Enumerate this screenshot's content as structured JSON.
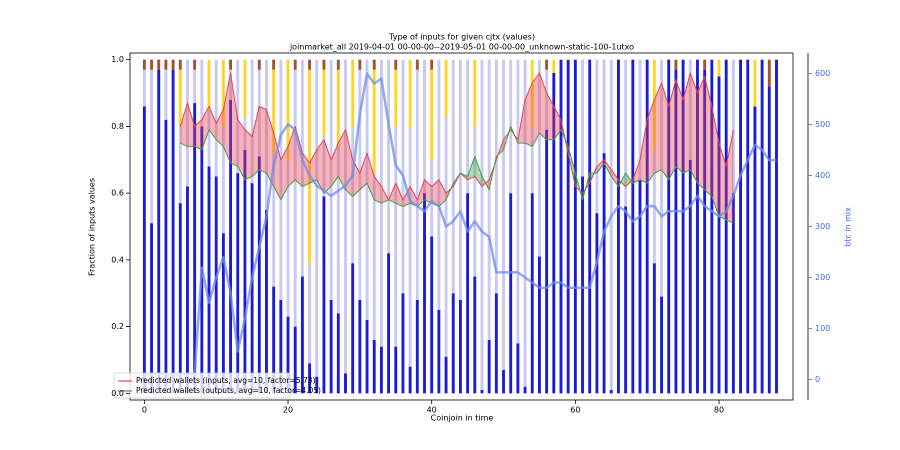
{
  "chart_data": {
    "type": "bar",
    "title": "Type of inputs for given cjtx (values)",
    "subtitle": "joinmarket_all 2019-04-01 00-00-00--2019-05-01 00-00-00_unknown-static-100-1utxo",
    "x_label": "Coinjoin in time",
    "y_label": "Fraction of inputs values",
    "y2_label": "btc in mix",
    "xlim": [
      -2,
      90.3
    ],
    "xticks": [
      0,
      20,
      40,
      60,
      80
    ],
    "ylim": [
      -0.02,
      1.02
    ],
    "yticks": [
      {
        "value": 0,
        "label": "0.0"
      },
      0.2,
      0.4,
      0.6,
      0.8,
      {
        "value": 1,
        "label": "1.0"
      }
    ],
    "y2lim": [
      -40,
      640
    ],
    "y2ticks": [
      0,
      100,
      200,
      300,
      400,
      500,
      600
    ],
    "legend": "lower left",
    "x": [
      0,
      1,
      2,
      3,
      4,
      5,
      6,
      7,
      8,
      9,
      10,
      11,
      12,
      13,
      14,
      15,
      16,
      17,
      18,
      19,
      20,
      21,
      22,
      23,
      24,
      25,
      26,
      27,
      28,
      29,
      30,
      31,
      32,
      33,
      34,
      35,
      36,
      37,
      38,
      39,
      40,
      41,
      42,
      43,
      44,
      45,
      46,
      47,
      48,
      49,
      50,
      51,
      52,
      53,
      54,
      55,
      56,
      57,
      58,
      59,
      60,
      61,
      62,
      63,
      64,
      65,
      66,
      67,
      68,
      69,
      70,
      71,
      72,
      73,
      74,
      75,
      76,
      77,
      78,
      79,
      80,
      81,
      82,
      83,
      84,
      85,
      86,
      87,
      88
    ],
    "series": [
      {
        "color": "#1c1cd8",
        "values": [
          0.86,
          0.51,
          0.97,
          0.82,
          0.97,
          0.57,
          0.62,
          0.87,
          0.8,
          0.68,
          0.65,
          0.48,
          0.88,
          0.66,
          0.73,
          0.63,
          0.71,
          0.55,
          0.32,
          0.28,
          0.23,
          0.2,
          0.35,
          0.09,
          0.05,
          0.59,
          0.28,
          0.24,
          0.06,
          0.39,
          0.28,
          0.22,
          0.16,
          0.14,
          0.42,
          0.14,
          0.3,
          0.08,
          0.28,
          0.6,
          0.47,
          0.25,
          0.11,
          0.3,
          0.28,
          0.6,
          0.35,
          0.01,
          0.16,
          0.3,
          0.07,
          0.6,
          0.15,
          0.02,
          0.6,
          0.41,
          0.79,
          0.96,
          1,
          1,
          1,
          0.65,
          1,
          0.54,
          0.72,
          0.01,
          1,
          0.56,
          1,
          0.64,
          1,
          0.39,
          0.29,
          1,
          0.97,
          1,
          0.7,
          1,
          0.97,
          1,
          0.95,
          1,
          0.6,
          1,
          1,
          0.86,
          1,
          0.92,
          1
        ]
      },
      {
        "color": "#c9c9f2",
        "values": [
          0.11,
          0.46,
          0,
          0.15,
          0,
          0.23,
          0.38,
          0.1,
          0.2,
          0.17,
          0.35,
          0.32,
          0.09,
          0.34,
          0.1,
          0.37,
          0.26,
          0.45,
          0.4,
          0.72,
          0.47,
          0.77,
          0.65,
          0.3,
          0.95,
          0.18,
          0.72,
          0.5,
          0.94,
          0.41,
          0.69,
          0.78,
          0.5,
          0.86,
          0.58,
          0.66,
          0.7,
          0.72,
          0.69,
          0.4,
          0.23,
          0.75,
          0.72,
          0.7,
          0.72,
          0.4,
          0.45,
          0.99,
          0.84,
          0.7,
          0.93,
          0.4,
          0.85,
          0.98,
          0.2,
          0.59,
          0.18,
          0,
          0,
          0,
          0,
          0.35,
          0,
          0.46,
          0.28,
          0.99,
          0,
          0.44,
          0,
          0.36,
          0,
          0.34,
          0.71,
          0,
          0,
          0,
          0.3,
          0,
          0,
          0,
          0,
          0,
          0.4,
          0,
          0,
          0,
          0,
          0,
          0
        ]
      },
      {
        "color": "#ffd426",
        "values": [
          0,
          0,
          0,
          0,
          0,
          0.17,
          0,
          0,
          0,
          0.15,
          0,
          0.2,
          0,
          0,
          0.17,
          0,
          0,
          0,
          0.25,
          0,
          0.3,
          0,
          0,
          0.58,
          0,
          0.2,
          0,
          0.23,
          0,
          0.2,
          0,
          0,
          0.31,
          0,
          0,
          0.17,
          0,
          0.2,
          0,
          0,
          0.27,
          0,
          0.17,
          0,
          0,
          0,
          0.2,
          0,
          0,
          0,
          0,
          0,
          0,
          0,
          0.2,
          0,
          0,
          0.04,
          0,
          0,
          0,
          0,
          0,
          0,
          0,
          0,
          0,
          0,
          0,
          0,
          0,
          0.27,
          0,
          0,
          0,
          0,
          0,
          0,
          0,
          0,
          0.05,
          0,
          0,
          0,
          0,
          0.14,
          0,
          0,
          0
        ]
      },
      {
        "color": "#a0522d",
        "values": [
          0.03,
          0.03,
          0.03,
          0.03,
          0.03,
          0.03,
          0,
          0.03,
          0,
          0,
          0,
          0,
          0.03,
          0,
          0,
          0,
          0.03,
          0,
          0.03,
          0,
          0,
          0.03,
          0,
          0.03,
          0,
          0.03,
          0,
          0.03,
          0,
          0,
          0.03,
          0,
          0.03,
          0,
          0,
          0.03,
          0,
          0,
          0.03,
          0,
          0.03,
          0,
          0,
          0,
          0,
          0,
          0,
          0,
          0,
          0,
          0,
          0,
          0,
          0,
          0,
          0,
          0.03,
          0,
          0,
          0,
          0,
          0,
          0,
          0,
          0,
          0,
          0,
          0,
          0,
          0,
          0,
          0,
          0,
          0,
          0.03,
          0,
          0,
          0,
          0.03,
          0,
          0,
          0,
          0,
          0,
          0,
          0,
          0,
          0.08,
          0
        ]
      },
      {
        "type": "line",
        "name": "Predicted wallets (inputs, avg=10, factor=5.73)",
        "color": "#e8434f",
        "values": [
          null,
          null,
          null,
          null,
          null,
          0.8,
          0.87,
          0.8,
          0.82,
          0.86,
          0.81,
          0.85,
          0.96,
          0.82,
          0.79,
          0.77,
          0.86,
          0.85,
          0.78,
          0.7,
          0.74,
          0.8,
          0.72,
          0.69,
          0.73,
          0.76,
          0.7,
          0.75,
          0.79,
          0.7,
          0.66,
          0.72,
          0.65,
          0.62,
          0.58,
          0.63,
          0.58,
          0.62,
          0.58,
          0.64,
          0.62,
          0.64,
          0.6,
          0.62,
          0.66,
          0.64,
          0.65,
          0.62,
          0.64,
          0.7,
          0.76,
          0.79,
          0.76,
          0.88,
          0.93,
          0.96,
          0.9,
          0.86,
          0.82,
          0.72,
          0.62,
          0.6,
          0.63,
          0.68,
          0.7,
          0.67,
          0.64,
          0.62,
          0.64,
          0.7,
          0.82,
          0.88,
          0.93,
          0.86,
          0.94,
          0.88,
          0.96,
          0.9,
          0.95,
          0.86,
          0.75,
          0.68,
          0.79,
          null,
          null,
          null,
          null,
          null,
          null
        ]
      },
      {
        "type": "line",
        "name": "Predicted wallets (outputs, avg=10, factor=4.05)",
        "color": "#3fa33f",
        "values": [
          null,
          null,
          null,
          null,
          null,
          0.75,
          0.74,
          0.74,
          0.73,
          0.79,
          0.76,
          0.74,
          0.69,
          0.68,
          0.64,
          0.65,
          0.67,
          0.66,
          0.62,
          0.58,
          0.62,
          0.64,
          0.62,
          0.63,
          0.64,
          0.6,
          0.62,
          0.65,
          0.61,
          0.59,
          0.61,
          0.63,
          0.58,
          0.57,
          0.58,
          0.57,
          0.56,
          0.57,
          0.56,
          0.58,
          0.57,
          0.56,
          0.58,
          0.63,
          0.66,
          0.65,
          0.71,
          0.65,
          0.61,
          0.71,
          0.73,
          0.8,
          0.75,
          0.75,
          0.74,
          0.78,
          0.76,
          0.76,
          0.79,
          0.74,
          0.66,
          0.58,
          0.66,
          0.66,
          0.69,
          0.65,
          0.62,
          0.66,
          0.63,
          0.64,
          0.63,
          0.66,
          0.67,
          0.64,
          0.68,
          0.66,
          0.67,
          0.63,
          0.61,
          0.59,
          0.53,
          0.52,
          0.51,
          null,
          null,
          null,
          null,
          null,
          null
        ]
      },
      {
        "type": "line",
        "axis": "y2",
        "color": "#6f8cec",
        "values": [
          10,
          10,
          12,
          10,
          8,
          10,
          10,
          10,
          220,
          150,
          200,
          240,
          170,
          55,
          120,
          200,
          260,
          320,
          420,
          480,
          500,
          490,
          430,
          400,
          380,
          370,
          360,
          370,
          380,
          400,
          520,
          600,
          580,
          590,
          500,
          420,
          400,
          350,
          340,
          330,
          350,
          340,
          300,
          310,
          330,
          290,
          310,
          290,
          280,
          210,
          210,
          210,
          210,
          200,
          190,
          180,
          180,
          190,
          190,
          180,
          180,
          180,
          180,
          230,
          290,
          320,
          340,
          330,
          310,
          320,
          340,
          340,
          320,
          330,
          330,
          330,
          340,
          360,
          340,
          330,
          320,
          330,
          360,
          400,
          430,
          460,
          450,
          430,
          430
        ]
      }
    ]
  }
}
